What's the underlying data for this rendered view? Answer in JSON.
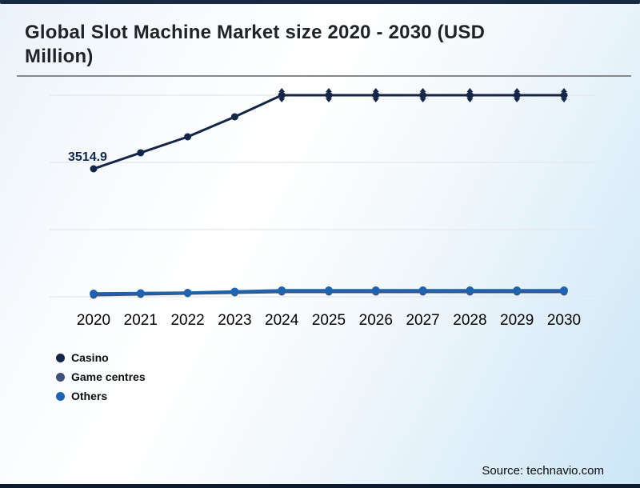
{
  "page": {
    "title": "Global Slot Machine Market size 2020 - 2030 (USD Million)",
    "source": "Source: technavio.com"
  },
  "colors": {
    "top_bar": "#182944",
    "bottom_bar": "#0e1b30",
    "divider": "#85898d",
    "gridline": "#e4e7ea",
    "title_text": "#1f2328",
    "year_label_text": "#000000",
    "data_label_text": "#13284e"
  },
  "chart_data": {
    "type": "line",
    "title": "Global Slot Machine Market size 2020 - 2030 (USD Million)",
    "categories": [
      "2020",
      "2021",
      "2022",
      "2023",
      "2024",
      "2025",
      "2026",
      "2027",
      "2028",
      "2029",
      "2030"
    ],
    "series": [
      {
        "name": "Casino",
        "color": "#152547",
        "values": [
          3514.9,
          3955,
          4394,
          4943,
          5536,
          5536,
          5536,
          5536,
          5536,
          5536,
          5536
        ],
        "capped_from_index": 4
      },
      {
        "name": "Game centres",
        "color": "#3d5179",
        "values": [
          44,
          66,
          88,
          110,
          132,
          132,
          132,
          132,
          132,
          132,
          132
        ]
      },
      {
        "name": "Others",
        "color": "#1f63ae",
        "values": [
          88,
          99,
          110,
          143,
          176,
          176,
          176,
          176,
          176,
          176,
          176
        ]
      }
    ],
    "data_label": {
      "series": "Casino",
      "category": "2020",
      "text": "3514.9"
    },
    "xlabel": "",
    "ylabel": "",
    "ylim": [
      0,
      5710
    ],
    "grid": "horizontal",
    "gridline_count": 4,
    "legend_position": "bottom-left",
    "y_axis_labels_visible": false
  }
}
